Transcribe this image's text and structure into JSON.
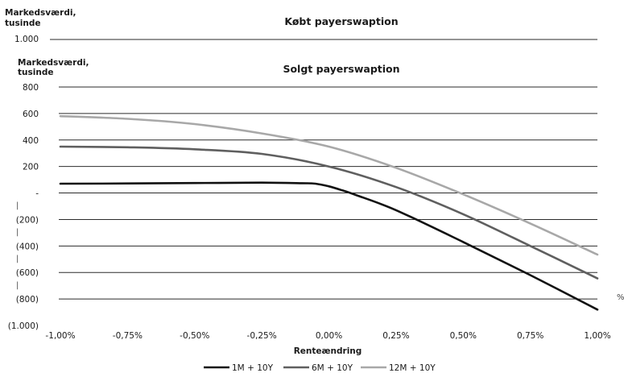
{
  "background_chart": {
    "title": "Købt payerswaption",
    "ylabel_line1": "Markedsværdi,",
    "ylabel_line2": "tusinde",
    "top_tick": "1.000"
  },
  "chart_data": {
    "type": "line",
    "title": "Solgt payerswaption",
    "ylabel_line1": "Markedsværdi,",
    "ylabel_line2": "tusinde",
    "xlabel": "Renteændring",
    "xlim": [
      -1.0,
      1.0
    ],
    "ylim": [
      -1000,
      800
    ],
    "x_ticks": [
      "-1,00%",
      "-0,75%",
      "-0,50%",
      "-0,25%",
      "0,00%",
      "0,25%",
      "0,50%",
      "0,75%",
      "1,00%"
    ],
    "y_ticks": [
      {
        "value": 800,
        "label": "800"
      },
      {
        "value": 600,
        "label": "600"
      },
      {
        "value": 400,
        "label": "400"
      },
      {
        "value": 200,
        "label": "200"
      },
      {
        "value": 0,
        "label": "-"
      },
      {
        "value": -200,
        "label": "(200)"
      },
      {
        "value": -400,
        "label": "(400)"
      },
      {
        "value": -600,
        "label": "(600)"
      },
      {
        "value": -800,
        "label": "(800)"
      },
      {
        "value": -1000,
        "label": "(1.000)"
      }
    ],
    "grid": true,
    "legend_position": "bottom",
    "series": [
      {
        "name": "1M + 10Y",
        "color": "#111111",
        "points": [
          [
            -1.0,
            70
          ],
          [
            -0.75,
            72
          ],
          [
            -0.5,
            75
          ],
          [
            -0.25,
            78
          ],
          [
            -0.1,
            74
          ],
          [
            -0.05,
            70
          ],
          [
            0.0,
            50
          ],
          [
            0.05,
            20
          ],
          [
            0.1,
            -15
          ],
          [
            0.25,
            -130
          ],
          [
            0.5,
            -370
          ],
          [
            0.75,
            -620
          ],
          [
            1.0,
            -880
          ]
        ]
      },
      {
        "name": "6M + 10Y",
        "color": "#5f5f5f",
        "points": [
          [
            -1.0,
            350
          ],
          [
            -0.75,
            345
          ],
          [
            -0.5,
            330
          ],
          [
            -0.25,
            295
          ],
          [
            0.0,
            200
          ],
          [
            0.25,
            45
          ],
          [
            0.5,
            -160
          ],
          [
            0.75,
            -400
          ],
          [
            1.0,
            -645
          ]
        ]
      },
      {
        "name": "12M + 10Y",
        "color": "#a8a8a8",
        "points": [
          [
            -1.0,
            580
          ],
          [
            -0.75,
            560
          ],
          [
            -0.5,
            520
          ],
          [
            -0.25,
            450
          ],
          [
            0.0,
            350
          ],
          [
            0.25,
            190
          ],
          [
            0.5,
            -10
          ],
          [
            0.75,
            -230
          ],
          [
            1.0,
            -465
          ]
        ]
      }
    ]
  }
}
